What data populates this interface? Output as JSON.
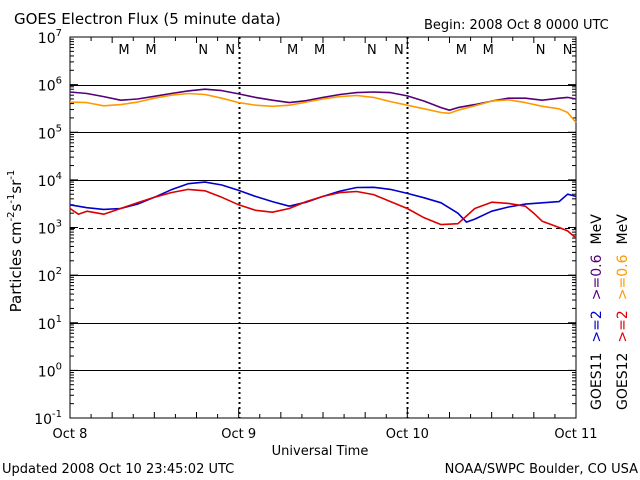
{
  "header": {
    "title": "GOES Electron Flux (5 minute data)",
    "begin": "Begin: 2008 Oct 8 0000 UTC"
  },
  "footer": {
    "updated": "Updated 2008 Oct 10 23:45:02 UTC",
    "source": "NOAA/SWPC Boulder, CO USA"
  },
  "colors": {
    "goes11_high": "#0000cc",
    "goes12_high": "#dd0000",
    "goes11_low": "#550077",
    "goes12_low": "#ff9900",
    "marker_m": "#cc0000",
    "marker_m2": "#0000cc"
  },
  "markers": [
    {
      "label": "M",
      "day": 0.32,
      "color": "#cc0000"
    },
    {
      "label": "M",
      "day": 0.48,
      "color": "#0000cc"
    },
    {
      "label": "N",
      "day": 0.79,
      "color": "#cc0000"
    },
    {
      "label": "N",
      "day": 0.95,
      "color": "#0000cc"
    },
    {
      "label": "M",
      "day": 1.32,
      "color": "#cc0000"
    },
    {
      "label": "M",
      "day": 1.48,
      "color": "#0000cc"
    },
    {
      "label": "N",
      "day": 1.79,
      "color": "#cc0000"
    },
    {
      "label": "N",
      "day": 1.95,
      "color": "#0000cc"
    },
    {
      "label": "M",
      "day": 2.32,
      "color": "#cc0000"
    },
    {
      "label": "M",
      "day": 2.48,
      "color": "#0000cc"
    },
    {
      "label": "N",
      "day": 2.79,
      "color": "#cc0000"
    },
    {
      "label": "N",
      "day": 2.95,
      "color": "#0000cc"
    }
  ],
  "right_legend": {
    "col1": [
      {
        "text": "GOES11",
        "color": "#000000"
      },
      {
        "text": ">=2",
        "color": "#0000cc"
      },
      {
        "text": ">=0.6",
        "color": "#550077"
      },
      {
        "text": "MeV",
        "color": "#000000"
      }
    ],
    "col2": [
      {
        "text": "GOES12",
        "color": "#000000"
      },
      {
        "text": ">=2",
        "color": "#dd0000"
      },
      {
        "text": ">=0.6",
        "color": "#ff9900"
      },
      {
        "text": "MeV",
        "color": "#000000"
      }
    ]
  },
  "chart_data": {
    "type": "line",
    "title": "GOES Electron Flux (5 minute data)",
    "xlabel": "Universal Time",
    "ylabel": "Particles cm⁻²s⁻¹sr⁻¹",
    "ylabel_parts": [
      "Particles cm",
      "-2",
      "s",
      "-1",
      "sr",
      "-1"
    ],
    "yscale": "log",
    "ylim_exp": [
      -1,
      7
    ],
    "ytick_exps": [
      -1,
      0,
      1,
      2,
      3,
      4,
      5,
      6,
      7
    ],
    "x_unit": "days since Oct 8 0000 UTC",
    "xlim": [
      0,
      3
    ],
    "xtick_labels": [
      "Oct 8",
      "Oct 9",
      "Oct 10",
      "Oct 11"
    ],
    "alert_threshold": 1000,
    "series": [
      {
        "name": "GOES11 >=0.6 MeV",
        "color": "#550077",
        "x": [
          0,
          0.1,
          0.2,
          0.3,
          0.4,
          0.5,
          0.6,
          0.7,
          0.8,
          0.9,
          1.0,
          1.1,
          1.2,
          1.3,
          1.4,
          1.5,
          1.6,
          1.7,
          1.8,
          1.9,
          2.0,
          2.1,
          2.2,
          2.25,
          2.3,
          2.4,
          2.5,
          2.6,
          2.7,
          2.8,
          2.9,
          2.95,
          3.0
        ],
        "y": [
          700000,
          650000,
          560000,
          470000,
          500000,
          570000,
          650000,
          740000,
          800000,
          750000,
          640000,
          540000,
          470000,
          420000,
          460000,
          540000,
          620000,
          680000,
          700000,
          680000,
          580000,
          450000,
          330000,
          290000,
          330000,
          380000,
          450000,
          520000,
          520000,
          470000,
          520000,
          540000,
          500000
        ]
      },
      {
        "name": "GOES12 >=0.6 MeV",
        "color": "#ff9900",
        "x": [
          0,
          0.1,
          0.2,
          0.3,
          0.4,
          0.5,
          0.6,
          0.7,
          0.8,
          0.9,
          1.0,
          1.1,
          1.2,
          1.3,
          1.4,
          1.5,
          1.6,
          1.7,
          1.8,
          1.9,
          2.0,
          2.1,
          2.2,
          2.25,
          2.3,
          2.4,
          2.5,
          2.6,
          2.7,
          2.8,
          2.9,
          2.95,
          3.0
        ],
        "y": [
          430000,
          420000,
          360000,
          380000,
          430000,
          520000,
          600000,
          650000,
          620000,
          520000,
          420000,
          370000,
          350000,
          370000,
          430000,
          500000,
          560000,
          590000,
          540000,
          440000,
          370000,
          310000,
          260000,
          250000,
          290000,
          360000,
          450000,
          480000,
          420000,
          350000,
          310000,
          260000,
          160000
        ]
      },
      {
        "name": "GOES11 >=2 MeV",
        "color": "#0000cc",
        "x": [
          0,
          0.1,
          0.2,
          0.3,
          0.4,
          0.5,
          0.6,
          0.7,
          0.8,
          0.9,
          1.0,
          1.1,
          1.2,
          1.3,
          1.4,
          1.5,
          1.6,
          1.7,
          1.8,
          1.9,
          2.0,
          2.1,
          2.2,
          2.3,
          2.35,
          2.4,
          2.5,
          2.6,
          2.7,
          2.8,
          2.9,
          2.95,
          3.0
        ],
        "y": [
          3000,
          2600,
          2400,
          2500,
          3100,
          4300,
          6200,
          8300,
          9000,
          7800,
          6000,
          4500,
          3500,
          2800,
          3400,
          4500,
          5800,
          6900,
          7000,
          6300,
          5200,
          4200,
          3300,
          2000,
          1300,
          1500,
          2200,
          2700,
          3100,
          3300,
          3500,
          5000,
          4500
        ]
      },
      {
        "name": "GOES12 >=2 MeV",
        "color": "#dd0000",
        "x": [
          0,
          0.05,
          0.1,
          0.2,
          0.3,
          0.4,
          0.5,
          0.6,
          0.7,
          0.8,
          0.9,
          1.0,
          1.1,
          1.2,
          1.3,
          1.4,
          1.5,
          1.6,
          1.7,
          1.8,
          1.9,
          2.0,
          2.1,
          2.2,
          2.3,
          2.4,
          2.5,
          2.6,
          2.7,
          2.75,
          2.8,
          2.9,
          2.95,
          3.0
        ],
        "y": [
          2500,
          1900,
          2200,
          1900,
          2500,
          3300,
          4300,
          5400,
          6300,
          5900,
          4300,
          3000,
          2300,
          2100,
          2500,
          3500,
          4500,
          5400,
          5700,
          4900,
          3500,
          2500,
          1600,
          1150,
          1200,
          2500,
          3400,
          3200,
          2800,
          2000,
          1350,
          1000,
          850,
          600
        ]
      }
    ]
  }
}
